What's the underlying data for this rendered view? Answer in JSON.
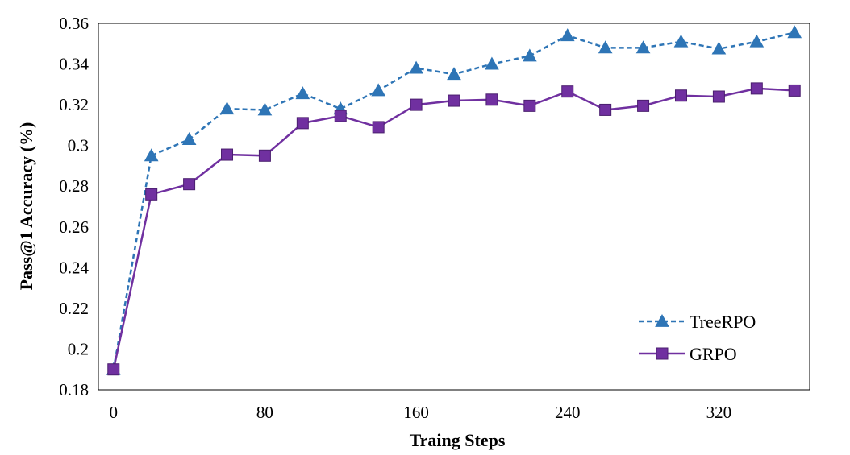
{
  "chart_data": {
    "type": "line",
    "title": "",
    "xlabel": "Traing Steps",
    "ylabel": "Pass@1 Accuracy (%)",
    "xlim": [
      -8,
      368
    ],
    "ylim": [
      0.18,
      0.36
    ],
    "x_ticks": [
      0,
      80,
      160,
      240,
      320
    ],
    "y_ticks": [
      0.18,
      0.2,
      0.22,
      0.24,
      0.26,
      0.28,
      0.3,
      0.32,
      0.34,
      0.36
    ],
    "y_tick_labels": [
      "0.18",
      "0.2",
      "0.22",
      "0.24",
      "0.26",
      "0.28",
      "0.3",
      "0.32",
      "0.34",
      "0.36"
    ],
    "grid": false,
    "legend_position": "bottom-right",
    "x": [
      0,
      20,
      40,
      60,
      80,
      100,
      120,
      140,
      160,
      180,
      200,
      220,
      240,
      260,
      280,
      300,
      320,
      340,
      360
    ],
    "series": [
      {
        "name": "TreeRPO",
        "color": "#2E75B6",
        "line_style": "dashed",
        "marker": "triangle",
        "values": [
          0.19,
          0.295,
          0.303,
          0.318,
          0.3175,
          0.3255,
          0.318,
          0.327,
          0.338,
          0.335,
          0.34,
          0.344,
          0.354,
          0.348,
          0.348,
          0.351,
          0.3475,
          0.351,
          0.3555
        ]
      },
      {
        "name": "GRPO",
        "color": "#7030A0",
        "line_style": "solid",
        "marker": "square",
        "values": [
          0.19,
          0.276,
          0.281,
          0.2955,
          0.295,
          0.311,
          0.3145,
          0.309,
          0.32,
          0.322,
          0.3225,
          0.3195,
          0.3265,
          0.3175,
          0.3195,
          0.3245,
          0.324,
          0.328,
          0.327
        ]
      }
    ]
  }
}
